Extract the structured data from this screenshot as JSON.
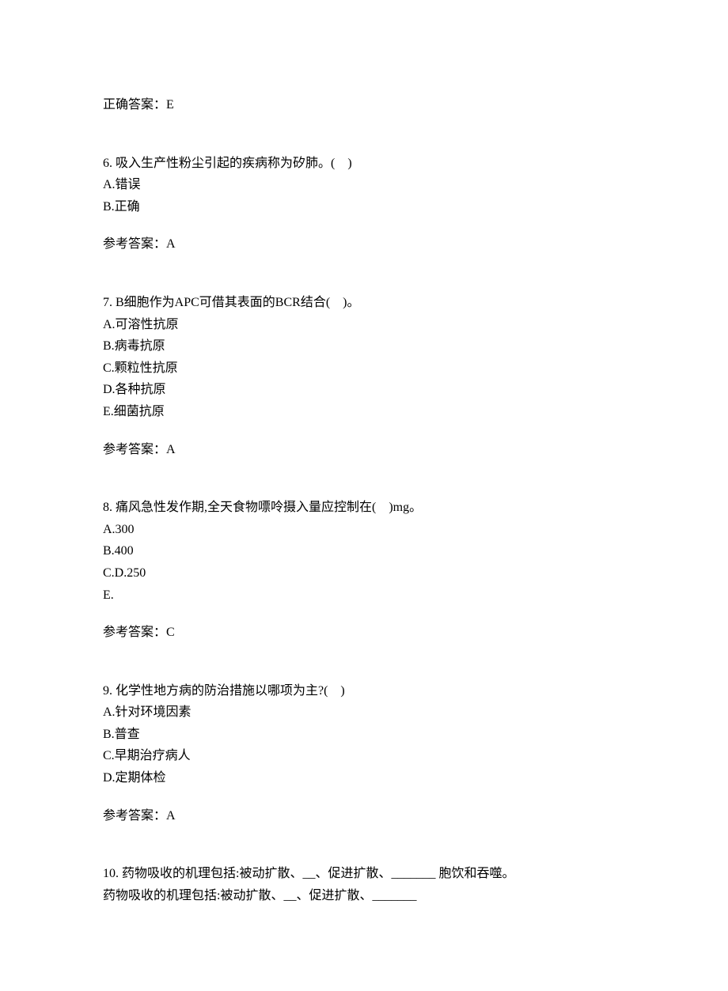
{
  "top_answer": {
    "label": "正确答案：",
    "value": "E"
  },
  "questions": [
    {
      "number": "6.",
      "text": "吸入生产性粉尘引起的疾病称为矽肺。(　)",
      "options": [
        "A.错误",
        "B.正确"
      ],
      "answer_label": "参考答案：",
      "answer_value": "A"
    },
    {
      "number": "7.",
      "text": "B细胞作为APC可借其表面的BCR结合(　)。",
      "options": [
        "A.可溶性抗原",
        "B.病毒抗原",
        "C.颗粒性抗原",
        "D.各种抗原",
        "E.细菌抗原"
      ],
      "answer_label": "参考答案：",
      "answer_value": "A"
    },
    {
      "number": "8.",
      "text": "痛风急性发作期,全天食物嘌呤摄入量应控制在(　)mg。",
      "options": [
        "A.300",
        "B.400",
        "C.D.250",
        "E."
      ],
      "answer_label": "参考答案：",
      "answer_value": "C"
    },
    {
      "number": "9.",
      "text": "化学性地方病的防治措施以哪项为主?(　)",
      "options": [
        "A.针对环境因素",
        "B.普查",
        "C.早期治疗病人",
        "D.定期体检"
      ],
      "answer_label": "参考答案：",
      "answer_value": "A"
    },
    {
      "number": "10.",
      "text": "药物吸收的机理包括:被动扩散、__、促进扩散、_______ 胞饮和吞噬。",
      "options": [],
      "extra_line": "药物吸收的机理包括:被动扩散、__、促进扩散、_______",
      "answer_label": "",
      "answer_value": ""
    }
  ]
}
